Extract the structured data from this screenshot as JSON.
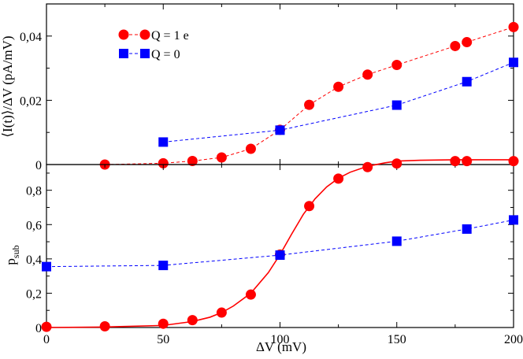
{
  "chart_data": [
    {
      "panel": "top",
      "type": "line",
      "ylabel": "⟨I(t)⟩/ΔV  (pA/mV)",
      "xlim": [
        0,
        200
      ],
      "ylim": [
        0,
        0.05
      ],
      "yticks": [
        0,
        0.02,
        0.04
      ],
      "ytick_labels": [
        "0",
        "0,02",
        "0,04"
      ],
      "legend_position": "top-left",
      "series": [
        {
          "name": "Q = 1 e",
          "color": "#ff0000",
          "marker": "circle",
          "line": "dashed",
          "x": [
            25,
            50,
            62.5,
            75,
            87.5,
            100,
            112.5,
            125,
            137.5,
            150,
            175,
            180,
            200
          ],
          "y": [
            0,
            0.0004,
            0.0011,
            0.0022,
            0.0049,
            0.0108,
            0.0186,
            0.0242,
            0.028,
            0.031,
            0.0369,
            0.0381,
            0.0428
          ]
        },
        {
          "name": "Q = 0",
          "color": "#0000ff",
          "marker": "square",
          "line": "dashed",
          "x": [
            50,
            100,
            150,
            180,
            200
          ],
          "y": [
            0.007,
            0.0107,
            0.0185,
            0.0258,
            0.0318
          ]
        }
      ]
    },
    {
      "panel": "bottom",
      "type": "line",
      "xlabel": "ΔV  (mV)",
      "ylabel": "p",
      "ylabel_sub": "sub",
      "xlim": [
        0,
        200
      ],
      "ylim": [
        0,
        0.95
      ],
      "xticks": [
        0,
        50,
        100,
        150,
        200
      ],
      "xtick_labels": [
        "0",
        "50",
        "100",
        "150",
        "200"
      ],
      "yticks": [
        0,
        0.2,
        0.4,
        0.6,
        0.8
      ],
      "ytick_labels": [
        "0",
        "0,2",
        "0,4",
        "0,6",
        "0,8"
      ],
      "series": [
        {
          "name": "Q = 1 e",
          "color": "#ff0000",
          "marker": "circle",
          "line": "solid-fit",
          "x": [
            0,
            25,
            50,
            62.5,
            75,
            87.5,
            100,
            112.5,
            125,
            137.5,
            150,
            175,
            180,
            200
          ],
          "y": [
            0.004,
            0.007,
            0.022,
            0.043,
            0.087,
            0.192,
            0.425,
            0.708,
            0.868,
            0.935,
            0.956,
            0.97,
            0.97,
            0.97
          ],
          "fit_x": [
            0,
            25,
            50,
            62.5,
            70,
            75,
            80,
            87.5,
            95,
            100,
            105,
            110,
            115,
            120,
            125,
            130,
            137.5,
            145,
            150,
            160,
            175,
            200
          ],
          "fit_y": [
            0.0,
            0.003,
            0.012,
            0.035,
            0.06,
            0.087,
            0.125,
            0.2,
            0.32,
            0.425,
            0.545,
            0.66,
            0.75,
            0.82,
            0.87,
            0.905,
            0.94,
            0.96,
            0.97,
            0.975,
            0.978,
            0.978
          ]
        },
        {
          "name": "Q = 0",
          "color": "#0000ff",
          "marker": "square",
          "line": "dashed",
          "x": [
            0,
            50,
            100,
            150,
            180,
            200
          ],
          "y": [
            0.355,
            0.362,
            0.422,
            0.503,
            0.574,
            0.627
          ]
        }
      ]
    }
  ]
}
